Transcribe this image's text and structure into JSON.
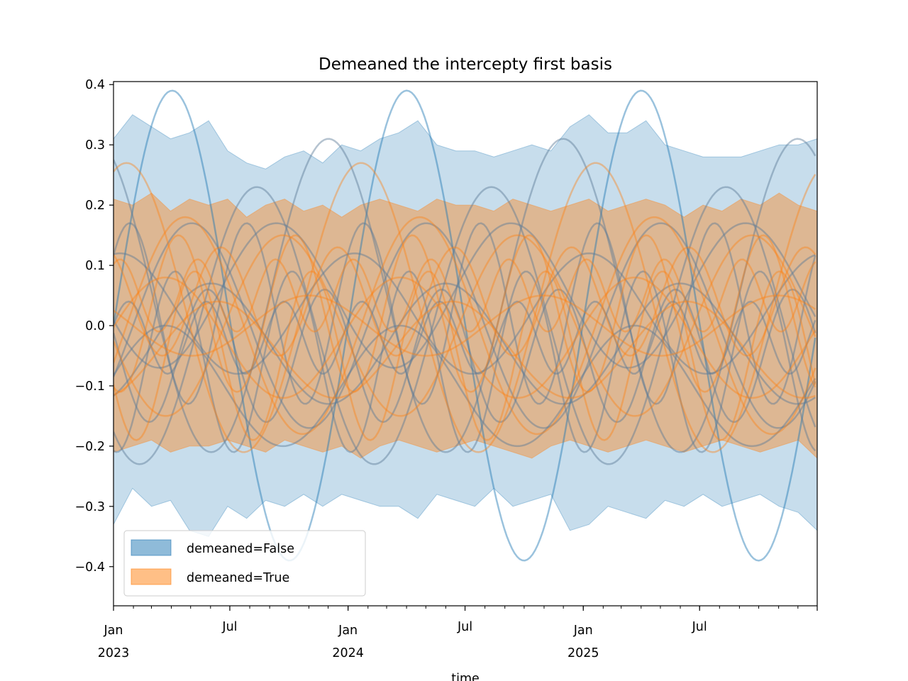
{
  "chart_data": {
    "type": "area",
    "title": "Demeaned the intercepty first basis",
    "xlabel": "time",
    "ylabel": "",
    "x_range": [
      "2023-01-01",
      "2025-12-31"
    ],
    "ylim": [
      -0.465,
      0.405
    ],
    "y_ticks": [
      -0.4,
      -0.3,
      -0.2,
      -0.1,
      0.0,
      0.1,
      0.2,
      0.3,
      0.4
    ],
    "y_tick_labels": [
      "−0.4",
      "−0.3",
      "−0.2",
      "−0.1",
      "0.0",
      "0.1",
      "0.2",
      "0.3",
      "0.4"
    ],
    "x_tick_labels": [
      {
        "date": "2023-01-01",
        "line1": "Jan",
        "line2": "2023"
      },
      {
        "date": "2023-07-01",
        "line1": "Jul",
        "line2": ""
      },
      {
        "date": "2024-01-01",
        "line1": "Jan",
        "line2": "2024"
      },
      {
        "date": "2024-07-01",
        "line1": "Jul",
        "line2": ""
      },
      {
        "date": "2025-01-01",
        "line1": "Jan",
        "line2": "2025"
      },
      {
        "date": "2025-07-01",
        "line1": "Jul",
        "line2": ""
      }
    ],
    "grid": false,
    "legend_position": "lower-left",
    "series": [
      {
        "name": "demeaned=False",
        "color": "#1f77b4",
        "band_upper": [
          0.31,
          0.35,
          0.33,
          0.31,
          0.32,
          0.34,
          0.29,
          0.27,
          0.26,
          0.28,
          0.29,
          0.27,
          0.3,
          0.29,
          0.31,
          0.32,
          0.34,
          0.3,
          0.29,
          0.29,
          0.28,
          0.29,
          0.3,
          0.29,
          0.33,
          0.35,
          0.32,
          0.32,
          0.34,
          0.3,
          0.29,
          0.28,
          0.28,
          0.28,
          0.29,
          0.3,
          0.3,
          0.31
        ],
        "band_lower": [
          -0.33,
          -0.27,
          -0.3,
          -0.29,
          -0.34,
          -0.35,
          -0.3,
          -0.32,
          -0.29,
          -0.3,
          -0.28,
          -0.3,
          -0.28,
          -0.29,
          -0.3,
          -0.3,
          -0.32,
          -0.28,
          -0.29,
          -0.3,
          -0.27,
          -0.3,
          -0.29,
          -0.28,
          -0.34,
          -0.33,
          -0.3,
          -0.31,
          -0.32,
          -0.29,
          -0.3,
          -0.28,
          -0.3,
          -0.29,
          -0.28,
          -0.3,
          -0.31,
          -0.34
        ],
        "samples": [
          {
            "mean": 0.0,
            "amp": 0.39,
            "period_days": 365,
            "phase_deg": 0
          },
          {
            "mean": 0.05,
            "amp": 0.26,
            "period_days": 365,
            "phase_deg": 120
          },
          {
            "mean": 0.0,
            "amp": 0.23,
            "period_days": 365,
            "phase_deg": 230
          },
          {
            "mean": 0.02,
            "amp": 0.15,
            "period_days": 182,
            "phase_deg": 40
          },
          {
            "mean": -0.03,
            "amp": 0.1,
            "period_days": 365,
            "phase_deg": 300
          },
          {
            "mean": 0.05,
            "amp": 0.12,
            "period_days": 365,
            "phase_deg": 200
          },
          {
            "mean": -0.05,
            "amp": 0.11,
            "period_days": 182,
            "phase_deg": 160
          },
          {
            "mean": 0.02,
            "amp": 0.1,
            "period_days": 365,
            "phase_deg": 80
          },
          {
            "mean": -0.06,
            "amp": 0.15,
            "period_days": 182,
            "phase_deg": 260
          },
          {
            "mean": 0.0,
            "amp": 0.17,
            "period_days": 365,
            "phase_deg": 330
          },
          {
            "mean": -0.02,
            "amp": 0.06,
            "period_days": 121,
            "phase_deg": 20
          },
          {
            "mean": -0.1,
            "amp": 0.1,
            "period_days": 365,
            "phase_deg": 10
          }
        ]
      },
      {
        "name": "demeaned=True",
        "color": "#ff7f0e",
        "band_upper": [
          0.21,
          0.2,
          0.22,
          0.19,
          0.21,
          0.2,
          0.21,
          0.18,
          0.2,
          0.21,
          0.19,
          0.2,
          0.18,
          0.2,
          0.21,
          0.2,
          0.19,
          0.21,
          0.2,
          0.2,
          0.19,
          0.21,
          0.2,
          0.19,
          0.2,
          0.21,
          0.19,
          0.2,
          0.21,
          0.2,
          0.18,
          0.2,
          0.19,
          0.21,
          0.2,
          0.22,
          0.2,
          0.19
        ],
        "band_lower": [
          -0.21,
          -0.2,
          -0.19,
          -0.21,
          -0.2,
          -0.2,
          -0.19,
          -0.2,
          -0.21,
          -0.19,
          -0.2,
          -0.21,
          -0.2,
          -0.22,
          -0.2,
          -0.19,
          -0.2,
          -0.21,
          -0.2,
          -0.19,
          -0.2,
          -0.21,
          -0.22,
          -0.2,
          -0.19,
          -0.2,
          -0.21,
          -0.2,
          -0.19,
          -0.2,
          -0.21,
          -0.2,
          -0.19,
          -0.2,
          -0.21,
          -0.2,
          -0.19,
          -0.22
        ],
        "samples": [
          {
            "mean": 0.03,
            "amp": 0.24,
            "period_days": 365,
            "phase_deg": 70
          },
          {
            "mean": 0.0,
            "amp": 0.15,
            "period_days": 365,
            "phase_deg": 190
          },
          {
            "mean": 0.02,
            "amp": 0.13,
            "period_days": 182,
            "phase_deg": 250
          },
          {
            "mean": -0.02,
            "amp": 0.1,
            "period_days": 365,
            "phase_deg": 10
          },
          {
            "mean": 0.04,
            "amp": 0.09,
            "period_days": 182,
            "phase_deg": 120
          },
          {
            "mean": -0.04,
            "amp": 0.08,
            "period_days": 365,
            "phase_deg": 290
          },
          {
            "mean": 0.0,
            "amp": 0.18,
            "period_days": 365,
            "phase_deg": 340
          },
          {
            "mean": 0.05,
            "amp": 0.06,
            "period_days": 121,
            "phase_deg": 60
          },
          {
            "mean": -0.05,
            "amp": 0.14,
            "period_days": 182,
            "phase_deg": 200
          },
          {
            "mean": 0.0,
            "amp": 0.05,
            "period_days": 365,
            "phase_deg": 150
          }
        ]
      }
    ]
  }
}
